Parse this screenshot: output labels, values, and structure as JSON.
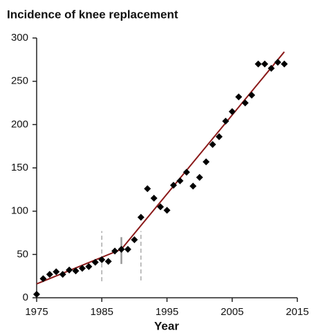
{
  "chart_data": {
    "type": "scatter",
    "title": "Incidence of knee replacement",
    "xlabel": "Year",
    "x": [
      1975,
      1976,
      1977,
      1978,
      1979,
      1980,
      1981,
      1982,
      1983,
      1984,
      1985,
      1986,
      1987,
      1988,
      1989,
      1990,
      1991,
      1992,
      1993,
      1994,
      1995,
      1996,
      1997,
      1998,
      1999,
      2000,
      2001,
      2002,
      2003,
      2004,
      2005,
      2006,
      2007,
      2008,
      2009,
      2010,
      2011,
      2012,
      2013
    ],
    "values": [
      4,
      22,
      27,
      30,
      27,
      32,
      31,
      34,
      36,
      41,
      44,
      42,
      54,
      56,
      56,
      67,
      93,
      126,
      115,
      105,
      101,
      130,
      135,
      145,
      129,
      139,
      157,
      177,
      186,
      204,
      215,
      232,
      225,
      234,
      270,
      270,
      265,
      272,
      270
    ],
    "color": "#000000",
    "fit": {
      "x": [
        1975,
        1988,
        2013
      ],
      "values": [
        16,
        56,
        284
      ],
      "color": "#8b1a1a"
    },
    "breakpoint_lines": [
      {
        "x": 1985,
        "values": [
          19,
          77
        ],
        "style": "dashed",
        "color": "#aaaaaa"
      },
      {
        "x": 1988,
        "values": [
          39,
          70
        ],
        "style": "solid",
        "color": "#999999"
      },
      {
        "x": 1991,
        "values": [
          20,
          77
        ],
        "style": "dashed",
        "color": "#aaaaaa"
      }
    ],
    "xlim": [
      1975,
      2015
    ],
    "xticks": [
      1975,
      1985,
      1995,
      2005,
      2015
    ],
    "ylim": [
      0,
      300
    ],
    "yticks": [
      0,
      50,
      100,
      150,
      200,
      250,
      300
    ]
  }
}
